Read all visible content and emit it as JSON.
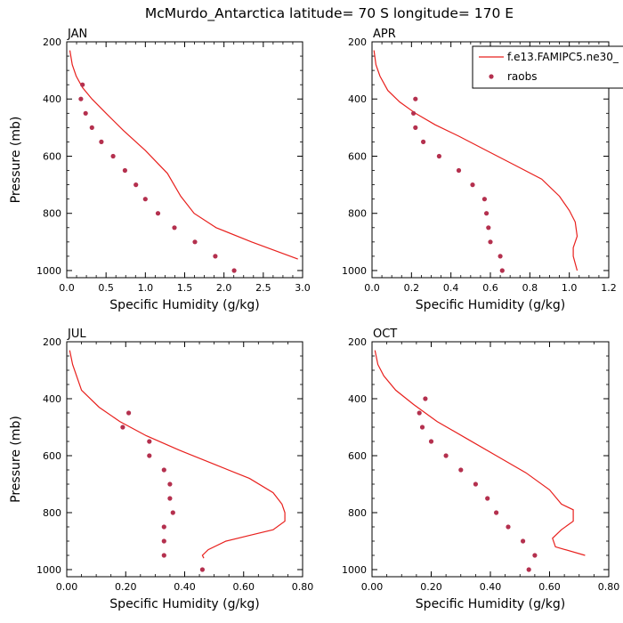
{
  "figure_title": "McMurdo_Antarctica  latitude= 70 S longitude= 170 E",
  "legend": {
    "model_label": "f.e13.FAMIPC5.ne30_",
    "obs_label": "raobs"
  },
  "colors": {
    "model_line": "#e8201d",
    "obs_marker": "#b4304e",
    "axis": "#000000",
    "background": "#ffffff"
  },
  "chart_data": [
    {
      "type": "line",
      "panel_label": "JAN",
      "xlabel": "Specific Humidity (g/kg)",
      "ylabel": "Pressure (mb)",
      "xlim": [
        0,
        3.0
      ],
      "ylim": [
        200,
        1025
      ],
      "y_inverted": true,
      "xticks": [
        "0.0",
        "0.5",
        "1.0",
        "1.5",
        "2.0",
        "2.5",
        "3.0"
      ],
      "xtick_values": [
        0,
        0.5,
        1.0,
        1.5,
        2.0,
        2.5,
        3.0
      ],
      "yticks": [
        "200",
        "400",
        "600",
        "800",
        "1000"
      ],
      "ytick_values": [
        200,
        400,
        600,
        800,
        1000
      ],
      "series": [
        {
          "name": "f.e13.FAMIPC5.ne30_",
          "kind": "line",
          "x": [
            0.04,
            0.07,
            0.12,
            0.2,
            0.32,
            0.5,
            0.72,
            1.0,
            1.28,
            1.45,
            1.62,
            1.9,
            2.35,
            2.94
          ],
          "y": [
            230,
            280,
            320,
            360,
            400,
            450,
            510,
            580,
            660,
            740,
            800,
            850,
            900,
            960
          ]
        },
        {
          "name": "raobs",
          "kind": "scatter",
          "x": [
            0.2,
            0.18,
            0.24,
            0.32,
            0.44,
            0.59,
            0.74,
            0.88,
            1.0,
            1.16,
            1.37,
            1.63,
            1.89,
            2.13
          ],
          "y": [
            350,
            400,
            450,
            500,
            550,
            600,
            650,
            700,
            750,
            800,
            850,
            900,
            950,
            1000
          ]
        }
      ]
    },
    {
      "type": "line",
      "panel_label": "APR",
      "xlabel": "Specific Humidity (g/kg)",
      "ylabel": "Pressure (mb)",
      "xlim": [
        0,
        1.2
      ],
      "ylim": [
        200,
        1025
      ],
      "y_inverted": true,
      "xticks": [
        "0.0",
        "0.2",
        "0.4",
        "0.6",
        "0.8",
        "1.0",
        "1.2"
      ],
      "xtick_values": [
        0,
        0.2,
        0.4,
        0.6,
        0.8,
        1.0,
        1.2
      ],
      "yticks": [
        "200",
        "400",
        "600",
        "800",
        "1000"
      ],
      "ytick_values": [
        200,
        400,
        600,
        800,
        1000
      ],
      "series": [
        {
          "name": "f.e13.FAMIPC5.ne30_",
          "kind": "line",
          "x": [
            0.01,
            0.02,
            0.04,
            0.08,
            0.14,
            0.22,
            0.32,
            0.44,
            0.58,
            0.72,
            0.86,
            0.95,
            1.0,
            1.03,
            1.04,
            1.02,
            1.02,
            1.04
          ],
          "y": [
            230,
            280,
            320,
            370,
            410,
            450,
            490,
            530,
            580,
            630,
            680,
            740,
            790,
            830,
            880,
            920,
            950,
            1000
          ]
        },
        {
          "name": "raobs",
          "kind": "scatter",
          "x": [
            0.22,
            0.21,
            0.22,
            0.26,
            0.34,
            0.44,
            0.51,
            0.57,
            0.58,
            0.59,
            0.6,
            0.65,
            0.66
          ],
          "y": [
            400,
            450,
            500,
            550,
            600,
            650,
            700,
            750,
            800,
            850,
            900,
            950,
            1000
          ]
        }
      ]
    },
    {
      "type": "line",
      "panel_label": "JUL",
      "xlabel": "Specific Humidity (g/kg)",
      "ylabel": "Pressure (mb)",
      "xlim": [
        0,
        0.8
      ],
      "ylim": [
        200,
        1025
      ],
      "y_inverted": true,
      "xticks": [
        "0.00",
        "0.20",
        "0.40",
        "0.60",
        "0.80"
      ],
      "xtick_values": [
        0,
        0.2,
        0.4,
        0.6,
        0.8
      ],
      "yticks": [
        "200",
        "400",
        "600",
        "800",
        "1000"
      ],
      "ytick_values": [
        200,
        400,
        600,
        800,
        1000
      ],
      "series": [
        {
          "name": "f.e13.FAMIPC5.ne30_",
          "kind": "line",
          "x": [
            0.01,
            0.02,
            0.05,
            0.11,
            0.18,
            0.27,
            0.38,
            0.5,
            0.62,
            0.7,
            0.73,
            0.74,
            0.74,
            0.7,
            0.62,
            0.54,
            0.48,
            0.46,
            0.465
          ],
          "y": [
            230,
            280,
            370,
            430,
            480,
            530,
            580,
            630,
            680,
            730,
            770,
            800,
            830,
            860,
            880,
            900,
            930,
            950,
            960
          ]
        },
        {
          "name": "raobs",
          "kind": "scatter",
          "x": [
            0.21,
            0.19,
            0.28,
            0.28,
            0.33,
            0.35,
            0.35,
            0.36,
            0.33,
            0.33,
            0.33,
            0.46
          ],
          "y": [
            450,
            500,
            550,
            600,
            650,
            700,
            750,
            800,
            850,
            900,
            950,
            1000
          ]
        }
      ]
    },
    {
      "type": "line",
      "panel_label": "OCT",
      "xlabel": "Specific Humidity (g/kg)",
      "ylabel": "Pressure (mb)",
      "xlim": [
        0,
        0.8
      ],
      "ylim": [
        200,
        1025
      ],
      "y_inverted": true,
      "xticks": [
        "0.00",
        "0.20",
        "0.40",
        "0.60",
        "0.80"
      ],
      "xtick_values": [
        0,
        0.2,
        0.4,
        0.6,
        0.8
      ],
      "yticks": [
        "200",
        "400",
        "600",
        "800",
        "1000"
      ],
      "ytick_values": [
        200,
        400,
        600,
        800,
        1000
      ],
      "series": [
        {
          "name": "f.e13.FAMIPC5.ne30_",
          "kind": "line",
          "x": [
            0.01,
            0.02,
            0.04,
            0.08,
            0.14,
            0.22,
            0.32,
            0.42,
            0.52,
            0.6,
            0.64,
            0.68,
            0.68,
            0.64,
            0.61,
            0.62,
            0.72
          ],
          "y": [
            230,
            280,
            320,
            370,
            420,
            480,
            540,
            600,
            660,
            720,
            770,
            790,
            830,
            860,
            890,
            920,
            950
          ]
        },
        {
          "name": "raobs",
          "kind": "scatter",
          "x": [
            0.18,
            0.16,
            0.17,
            0.2,
            0.25,
            0.3,
            0.35,
            0.39,
            0.42,
            0.46,
            0.51,
            0.55,
            0.53
          ],
          "y": [
            400,
            450,
            500,
            550,
            600,
            650,
            700,
            750,
            800,
            850,
            900,
            950,
            1000
          ]
        }
      ]
    }
  ]
}
